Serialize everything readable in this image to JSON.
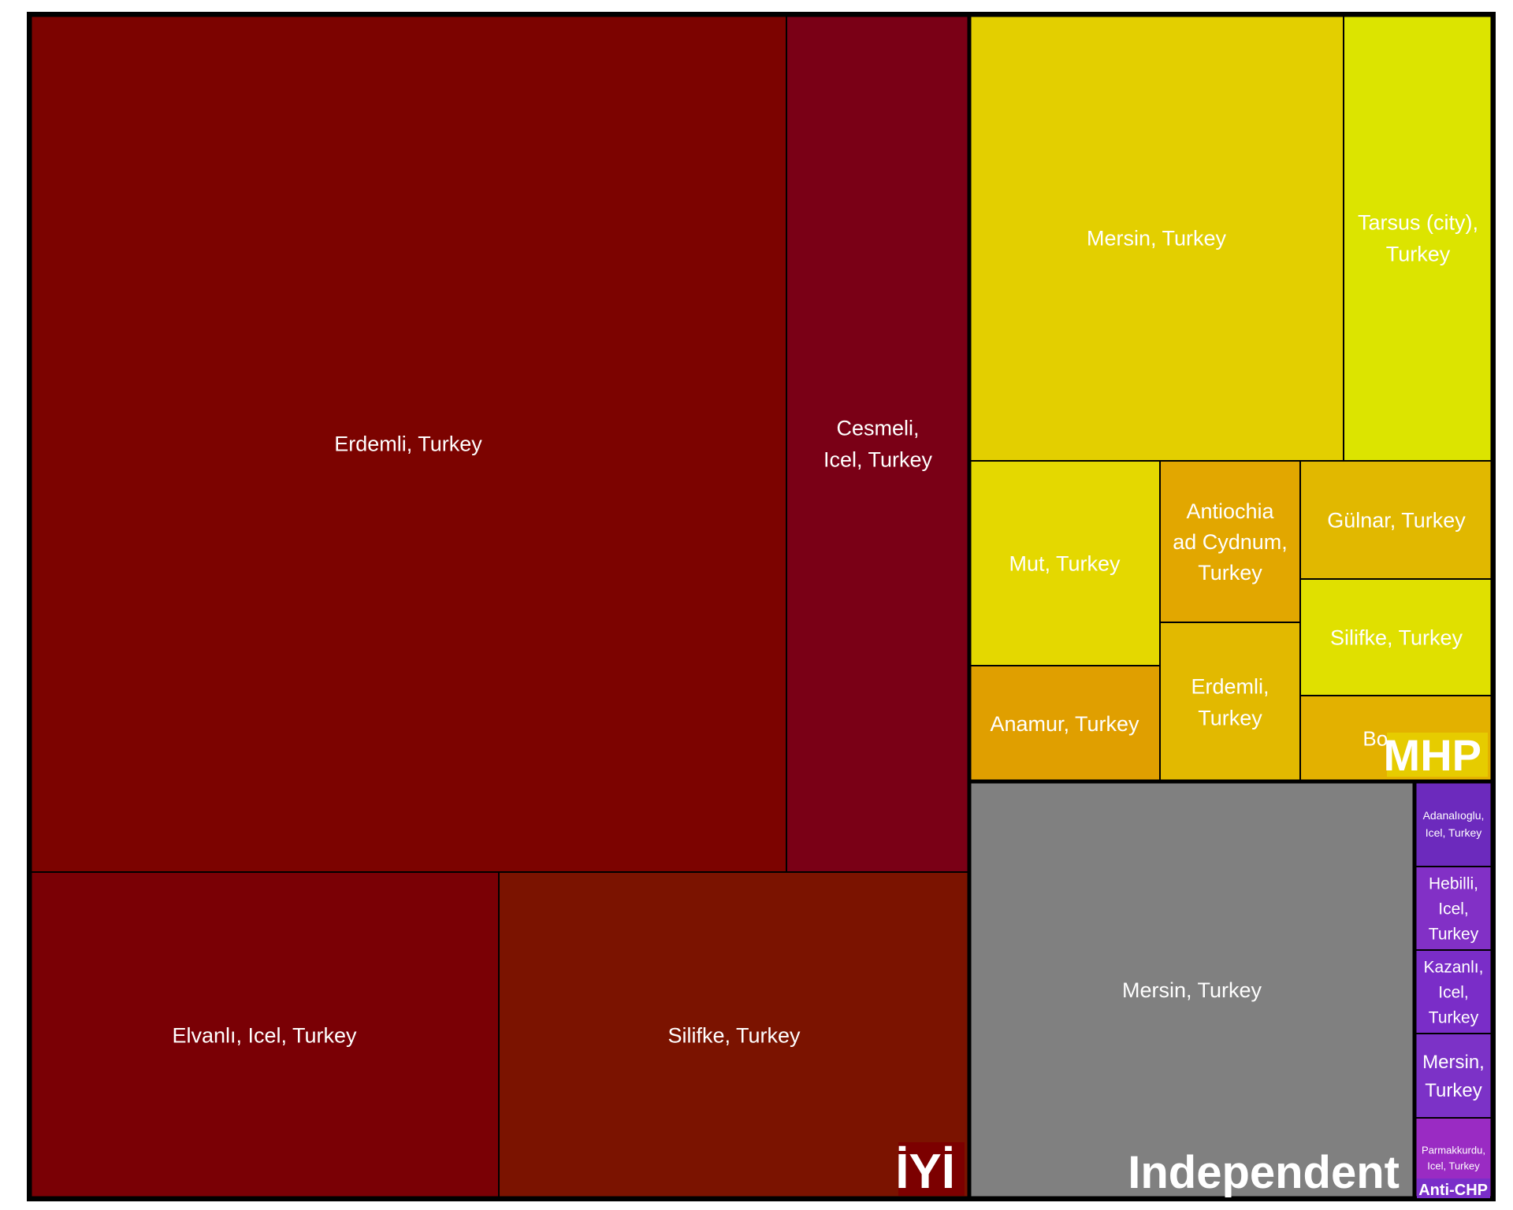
{
  "chart_data": {
    "type": "treemap",
    "title": "",
    "groups": [
      {
        "name": "İYİ",
        "label_color": "#7c0000",
        "cells": [
          {
            "label": "Erdemli, Turkey",
            "color": "#7c0300"
          },
          {
            "label": "Cesmeli, Icel, Turkey",
            "color": "#7a0016"
          },
          {
            "label": "Elvanlı, Icel, Turkey",
            "color": "#7a0005"
          },
          {
            "label": "Silifke, Turkey",
            "color": "#7b1300"
          }
        ]
      },
      {
        "name": "MHP",
        "label_color": "#e6cc00",
        "cells": [
          {
            "label": "Mersin, Turkey",
            "color": "#e3cf00"
          },
          {
            "label": "Tarsus (city), Turkey",
            "color": "#dce400"
          },
          {
            "label": "Mut, Turkey",
            "color": "#e4d800"
          },
          {
            "label": "Antiochia ad Cydnum, Turkey",
            "color": "#e2a700"
          },
          {
            "label": "Gülnar, Turkey",
            "color": "#e1b800"
          },
          {
            "label": "Silifke, Turkey",
            "color": "#e0e000"
          },
          {
            "label": "Anamur, Turkey",
            "color": "#e09f00"
          },
          {
            "label": "Erdemli, Turkey",
            "color": "#e2b900"
          },
          {
            "label": "Bozyaz",
            "color": "#e3b100"
          }
        ]
      },
      {
        "name": "Independent",
        "label_color": "#808080",
        "cells": [
          {
            "label": "Mersin, Turkey",
            "color": "#808080"
          }
        ]
      },
      {
        "name": "Anti-CHP",
        "label_color": "#7a2ec9",
        "cells": [
          {
            "label": "Adanalıoglu, Icel, Turkey",
            "color": "#6c2abd"
          },
          {
            "label": "Hebilli, Icel, Turkey",
            "color": "#8230c6"
          },
          {
            "label": "Kazanlı, Icel, Turkey",
            "color": "#7a2dc8"
          },
          {
            "label": "Mersin, Turkey",
            "color": "#7c32c7"
          },
          {
            "label": "Parmakkurdu, Icel, Turkey",
            "color": "#9a2bc3"
          }
        ]
      }
    ]
  }
}
